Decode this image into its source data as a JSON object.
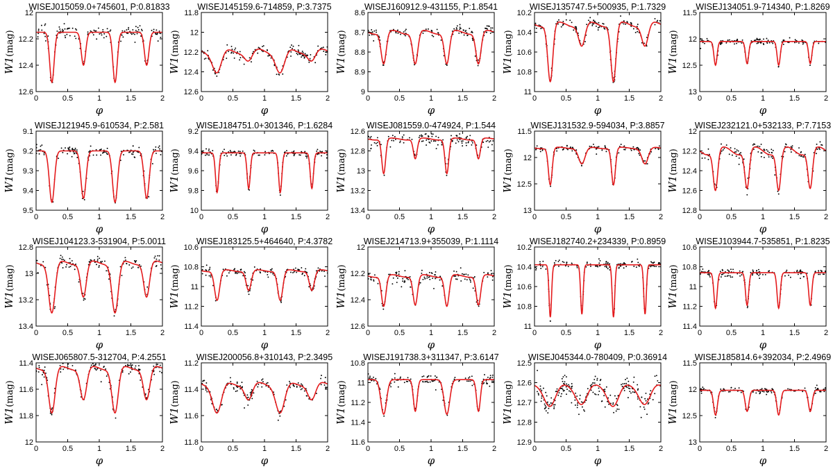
{
  "figure": {
    "x_label": "φ",
    "y_label_var": "W1",
    "y_label_unit": "(mag)",
    "x_ticks": [
      "0",
      "0.5",
      "1",
      "1.5",
      "2"
    ],
    "model_color": "#e41a1c",
    "point_color": "#000000"
  },
  "chart_data": [
    {
      "type": "scatter",
      "title": "WISEJ015059.0+745601, P:0.81833",
      "ylim": [
        12.6,
        12.0
      ],
      "yticks": [
        "12",
        "12.2",
        "12.4",
        "12.6"
      ],
      "ytick_values": [
        12,
        12.2,
        12.4,
        12.6
      ],
      "base": 12.15,
      "d1": 0.38,
      "d2": 0.25,
      "w1": 0.035,
      "w2": 0.035,
      "bump": 0,
      "noise": 0.045,
      "npts": 150
    },
    {
      "type": "scatter",
      "title": "WISEJ145159.6-714859, P:3.7375",
      "ylim": [
        12.6,
        11.8
      ],
      "yticks": [
        "11.8",
        "12",
        "12.2",
        "12.4",
        "12.6"
      ],
      "ytick_values": [
        11.8,
        12,
        12.2,
        12.4,
        12.6
      ],
      "base": 12.19,
      "d1": 0.22,
      "d2": 0.1,
      "w1": 0.07,
      "w2": 0.06,
      "bump": 0.05,
      "noise": 0.04,
      "npts": 150
    },
    {
      "type": "scatter",
      "title": "WISEJ160912.9-431155, P:1.8541",
      "ylim": [
        9.0,
        8.6
      ],
      "yticks": [
        "8.6",
        "8.7",
        "8.8",
        "8.9",
        "9"
      ],
      "ytick_values": [
        8.6,
        8.7,
        8.8,
        8.9,
        9
      ],
      "base": 8.7,
      "d1": 0.16,
      "d2": 0.16,
      "w1": 0.04,
      "w2": 0.04,
      "bump": 0.02,
      "noise": 0.02,
      "npts": 150
    },
    {
      "type": "scatter",
      "title": "WISEJ135747.5+500935, P:1.7329",
      "ylim": [
        11.0,
        10.2
      ],
      "yticks": [
        "10.2",
        "10.4",
        "10.6",
        "10.8",
        "11"
      ],
      "ytick_values": [
        10.2,
        10.4,
        10.6,
        10.8,
        11
      ],
      "base": 10.32,
      "d1": 0.58,
      "d2": 0.22,
      "w1": 0.04,
      "w2": 0.05,
      "bump": 0.05,
      "noise": 0.04,
      "npts": 150
    },
    {
      "type": "scatter",
      "title": "WISEJ134051.9-714340, P:1.8269",
      "ylim": [
        13.0,
        11.5
      ],
      "yticks": [
        "11.5",
        "12",
        "12.5",
        "13"
      ],
      "ytick_values": [
        11.5,
        12,
        12.5,
        13
      ],
      "base": 12.05,
      "d1": 0.45,
      "d2": 0.42,
      "w1": 0.025,
      "w2": 0.025,
      "bump": 0,
      "noise": 0.05,
      "npts": 150
    },
    {
      "type": "scatter",
      "title": "WISEJ121945.9-610534, P:2.581",
      "ylim": [
        9.5,
        9.1
      ],
      "yticks": [
        "9.1",
        "9.2",
        "9.3",
        "9.4",
        "9.5"
      ],
      "ytick_values": [
        9.1,
        9.2,
        9.3,
        9.4,
        9.5
      ],
      "base": 9.2,
      "d1": 0.26,
      "d2": 0.24,
      "w1": 0.04,
      "w2": 0.04,
      "bump": 0,
      "noise": 0.025,
      "npts": 150
    },
    {
      "type": "scatter",
      "title": "WISEJ184751.0+301346, P:1.6284",
      "ylim": [
        10.0,
        9.2
      ],
      "yticks": [
        "9.2",
        "9.4",
        "9.6",
        "9.8",
        "10"
      ],
      "ytick_values": [
        9.2,
        9.4,
        9.6,
        9.8,
        10
      ],
      "base": 9.42,
      "d1": 0.4,
      "d2": 0.36,
      "w1": 0.025,
      "w2": 0.025,
      "bump": 0,
      "noise": 0.03,
      "npts": 150
    },
    {
      "type": "scatter",
      "title": "WISEJ081559.0-474924, P:1.544",
      "ylim": [
        13.4,
        12.6
      ],
      "yticks": [
        "12.6",
        "12.8",
        "13",
        "13.2",
        "13.4"
      ],
      "ytick_values": [
        12.6,
        12.8,
        13,
        13.2,
        13.4
      ],
      "base": 12.68,
      "d1": 0.35,
      "d2": 0.2,
      "w1": 0.03,
      "w2": 0.03,
      "bump": 0.02,
      "noise": 0.06,
      "npts": 150
    },
    {
      "type": "scatter",
      "title": "WISEJ131532.9-594034, P:3.8857",
      "ylim": [
        13.0,
        11.5
      ],
      "yticks": [
        "11.5",
        "12",
        "12.5",
        "13"
      ],
      "ytick_values": [
        11.5,
        12,
        12.5,
        13
      ],
      "base": 11.82,
      "d1": 0.7,
      "d2": 0.3,
      "w1": 0.03,
      "w2": 0.05,
      "bump": 0.03,
      "noise": 0.05,
      "npts": 150
    },
    {
      "type": "scatter",
      "title": "WISEJ232121.0+532133, P:7.7153",
      "ylim": [
        12.8,
        12.0
      ],
      "yticks": [
        "12",
        "12.2",
        "12.4",
        "12.6",
        "12.8"
      ],
      "ytick_values": [
        12,
        12.2,
        12.4,
        12.6,
        12.8
      ],
      "base": 12.2,
      "d1": 0.4,
      "d2": 0.38,
      "w1": 0.035,
      "w2": 0.035,
      "bump": 0.08,
      "noise": 0.06,
      "npts": 150
    },
    {
      "type": "scatter",
      "title": "WISEJ104123.3-531904, P:5.0011",
      "ylim": [
        13.4,
        12.8
      ],
      "yticks": [
        "12.8",
        "13",
        "13.2",
        "13.4"
      ],
      "ytick_values": [
        12.8,
        13,
        13.2,
        13.4
      ],
      "base": 12.92,
      "d1": 0.38,
      "d2": 0.26,
      "w1": 0.05,
      "w2": 0.045,
      "bump": 0.03,
      "noise": 0.04,
      "npts": 150
    },
    {
      "type": "scatter",
      "title": "WISEJ183125.5+464640, P:4.3782",
      "ylim": [
        11.4,
        10.6
      ],
      "yticks": [
        "10.6",
        "10.8",
        "11",
        "11.2",
        "11.4"
      ],
      "ytick_values": [
        10.6,
        10.8,
        11,
        11.2,
        11.4
      ],
      "base": 10.84,
      "d1": 0.3,
      "d2": 0.2,
      "w1": 0.04,
      "w2": 0.04,
      "bump": 0.02,
      "noise": 0.04,
      "npts": 150
    },
    {
      "type": "scatter",
      "title": "WISEJ214713.9+355039, P:1.1114",
      "ylim": [
        12.6,
        12.0
      ],
      "yticks": [
        "12",
        "12.2",
        "12.4",
        "12.6"
      ],
      "ytick_values": [
        12,
        12.2,
        12.4,
        12.6
      ],
      "base": 12.22,
      "d1": 0.23,
      "d2": 0.22,
      "w1": 0.035,
      "w2": 0.035,
      "bump": 0.02,
      "noise": 0.04,
      "npts": 150
    },
    {
      "type": "scatter",
      "title": "WISEJ182740.2+234339, P:0.8959",
      "ylim": [
        11.0,
        10.2
      ],
      "yticks": [
        "10.2",
        "10.4",
        "10.6",
        "10.8",
        "11"
      ],
      "ytick_values": [
        10.2,
        10.4,
        10.6,
        10.8,
        11
      ],
      "base": 10.38,
      "d1": 0.53,
      "d2": 0.5,
      "w1": 0.02,
      "w2": 0.02,
      "bump": 0,
      "noise": 0.04,
      "npts": 150
    },
    {
      "type": "scatter",
      "title": "WISEJ103944.7-535851, P:1.8235",
      "ylim": [
        11.4,
        10.6
      ],
      "yticks": [
        "10.6",
        "10.8",
        "11",
        "11.2",
        "11.4"
      ],
      "ytick_values": [
        10.6,
        10.8,
        11,
        11.2,
        11.4
      ],
      "base": 10.86,
      "d1": 0.36,
      "d2": 0.33,
      "w1": 0.025,
      "w2": 0.025,
      "bump": 0,
      "noise": 0.04,
      "npts": 150
    },
    {
      "type": "scatter",
      "title": "WISEJ065807.5-312704, P:4.2551",
      "ylim": [
        12.0,
        11.4
      ],
      "yticks": [
        "11.4",
        "11.6",
        "11.8",
        "12"
      ],
      "ytick_values": [
        11.4,
        11.6,
        11.8,
        12
      ],
      "base": 11.44,
      "d1": 0.34,
      "d2": 0.24,
      "w1": 0.05,
      "w2": 0.05,
      "bump": 0.03,
      "noise": 0.04,
      "npts": 150
    },
    {
      "type": "scatter",
      "title": "WISEJ200056.8+310143, P:2.3495",
      "ylim": [
        11.8,
        11.2
      ],
      "yticks": [
        "11.2",
        "11.4",
        "11.6",
        "11.8"
      ],
      "ytick_values": [
        11.2,
        11.4,
        11.6,
        11.8
      ],
      "base": 11.36,
      "d1": 0.22,
      "d2": 0.12,
      "w1": 0.07,
      "w2": 0.06,
      "bump": 0.03,
      "noise": 0.04,
      "npts": 150
    },
    {
      "type": "scatter",
      "title": "WISEJ191738.3+311347, P:3.6147",
      "ylim": [
        11.6,
        10.8
      ],
      "yticks": [
        "10.8",
        "11",
        "11.2",
        "11.4",
        "11.6"
      ],
      "ytick_values": [
        10.8,
        11,
        11.2,
        11.4,
        11.6
      ],
      "base": 10.97,
      "d1": 0.35,
      "d2": 0.32,
      "w1": 0.045,
      "w2": 0.03,
      "bump": 0,
      "noise": 0.04,
      "npts": 150
    },
    {
      "type": "scatter",
      "title": "WISEJ045344.0-780409, P:0.36914",
      "ylim": [
        12.9,
        12.5
      ],
      "yticks": [
        "12.5",
        "12.6",
        "12.7",
        "12.8",
        "12.9"
      ],
      "ytick_values": [
        12.5,
        12.6,
        12.7,
        12.8,
        12.9
      ],
      "base": 12.61,
      "d1": 0.11,
      "d2": 0.1,
      "w1": 0.09,
      "w2": 0.09,
      "bump": 0.02,
      "noise": 0.05,
      "npts": 220
    },
    {
      "type": "scatter",
      "title": "WISEJ185814.6+392034, P:2.4969",
      "ylim": [
        13.0,
        11.5
      ],
      "yticks": [
        "11.5",
        "12",
        "12.5",
        "13"
      ],
      "ytick_values": [
        11.5,
        12,
        12.5,
        13
      ],
      "base": 12.02,
      "d1": 0.47,
      "d2": 0.4,
      "w1": 0.03,
      "w2": 0.03,
      "bump": 0,
      "noise": 0.05,
      "npts": 150
    }
  ]
}
